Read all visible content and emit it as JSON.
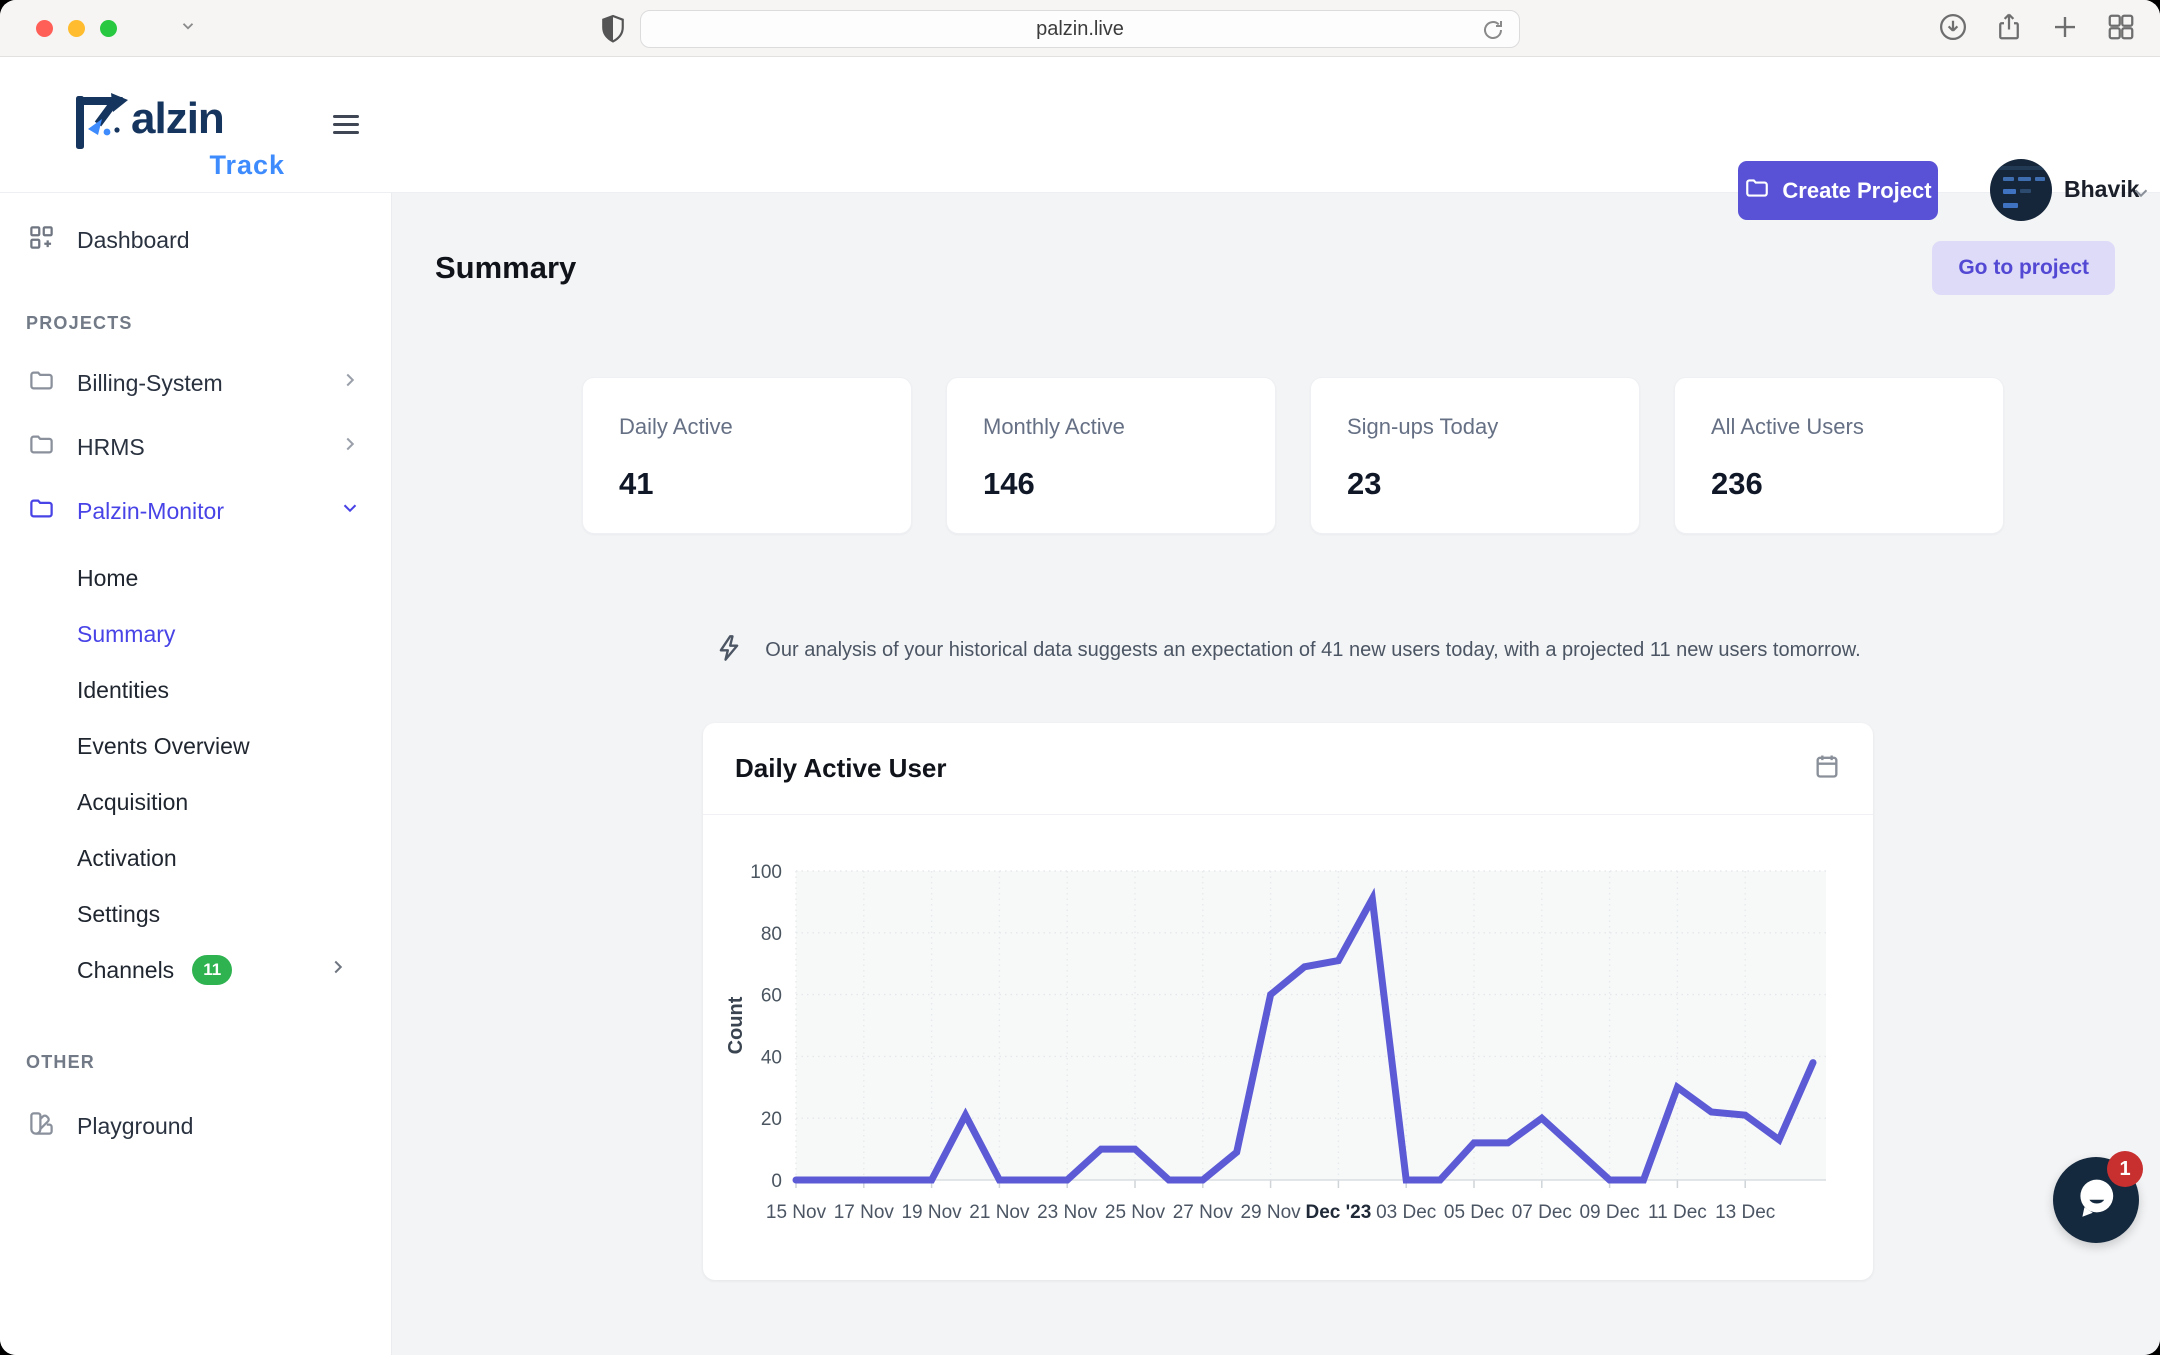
{
  "browser": {
    "url": "palzin.live"
  },
  "header": {
    "logo": {
      "wordmark": "alzin",
      "subtitle": "Track"
    },
    "create_project_label": "Create Project",
    "user_name": "Bhavik"
  },
  "sidebar": {
    "dashboard_label": "Dashboard",
    "projects_heading": "PROJECTS",
    "projects": [
      {
        "label": "Billing-System",
        "active": false
      },
      {
        "label": "HRMS",
        "active": false
      },
      {
        "label": "Palzin-Monitor",
        "active": true
      }
    ],
    "project_menu": [
      {
        "label": "Home"
      },
      {
        "label": "Summary",
        "active": true
      },
      {
        "label": "Identities"
      },
      {
        "label": "Events Overview"
      },
      {
        "label": "Acquisition"
      },
      {
        "label": "Activation"
      },
      {
        "label": "Settings"
      },
      {
        "label": "Channels",
        "badge": "11"
      }
    ],
    "other_heading": "OTHER",
    "playground_label": "Playground"
  },
  "main": {
    "title": "Summary",
    "go_to_project_label": "Go to project",
    "stats": [
      {
        "label": "Daily Active",
        "value": "41"
      },
      {
        "label": "Monthly Active",
        "value": "146"
      },
      {
        "label": "Sign-ups Today",
        "value": "23"
      },
      {
        "label": "All Active Users",
        "value": "236"
      }
    ],
    "insight": "Our analysis of your historical data suggests an expectation of 41 new users today, with a projected 11 new users tomorrow."
  },
  "chart_data": {
    "type": "line",
    "title": "Daily Active User",
    "xlabel": "",
    "ylabel": "Count",
    "ylim": [
      0,
      100
    ],
    "yticks": [
      0,
      20,
      40,
      60,
      80,
      100
    ],
    "grid": true,
    "legend": false,
    "line_color": "#5c5bd5",
    "plot_bg": "#f7f9f9",
    "x": [
      "15 Nov",
      "16 Nov",
      "17 Nov",
      "18 Nov",
      "19 Nov",
      "20 Nov",
      "21 Nov",
      "22 Nov",
      "23 Nov",
      "24 Nov",
      "25 Nov",
      "26 Nov",
      "27 Nov",
      "28 Nov",
      "29 Nov",
      "30 Nov",
      "01 Dec",
      "02 Dec",
      "03 Dec",
      "04 Dec",
      "05 Dec",
      "06 Dec",
      "07 Dec",
      "08 Dec",
      "09 Dec",
      "10 Dec",
      "11 Dec",
      "12 Dec",
      "13 Dec",
      "14 Dec",
      "15 Dec"
    ],
    "values": [
      0,
      0,
      0,
      0,
      0,
      21,
      0,
      0,
      0,
      10,
      10,
      0,
      0,
      9,
      60,
      69,
      71,
      91,
      0,
      0,
      12,
      12,
      20,
      10,
      0,
      0,
      30,
      22,
      21,
      13,
      38
    ],
    "xtick_labels": [
      "15 Nov",
      "17 Nov",
      "19 Nov",
      "21 Nov",
      "23 Nov",
      "25 Nov",
      "27 Nov",
      "29 Nov",
      "Dec '23",
      "03 Dec",
      "05 Dec",
      "07 Dec",
      "09 Dec",
      "11 Dec",
      "13 Dec"
    ],
    "bold_xtick": "Dec '23"
  },
  "chat": {
    "badge": "1"
  }
}
